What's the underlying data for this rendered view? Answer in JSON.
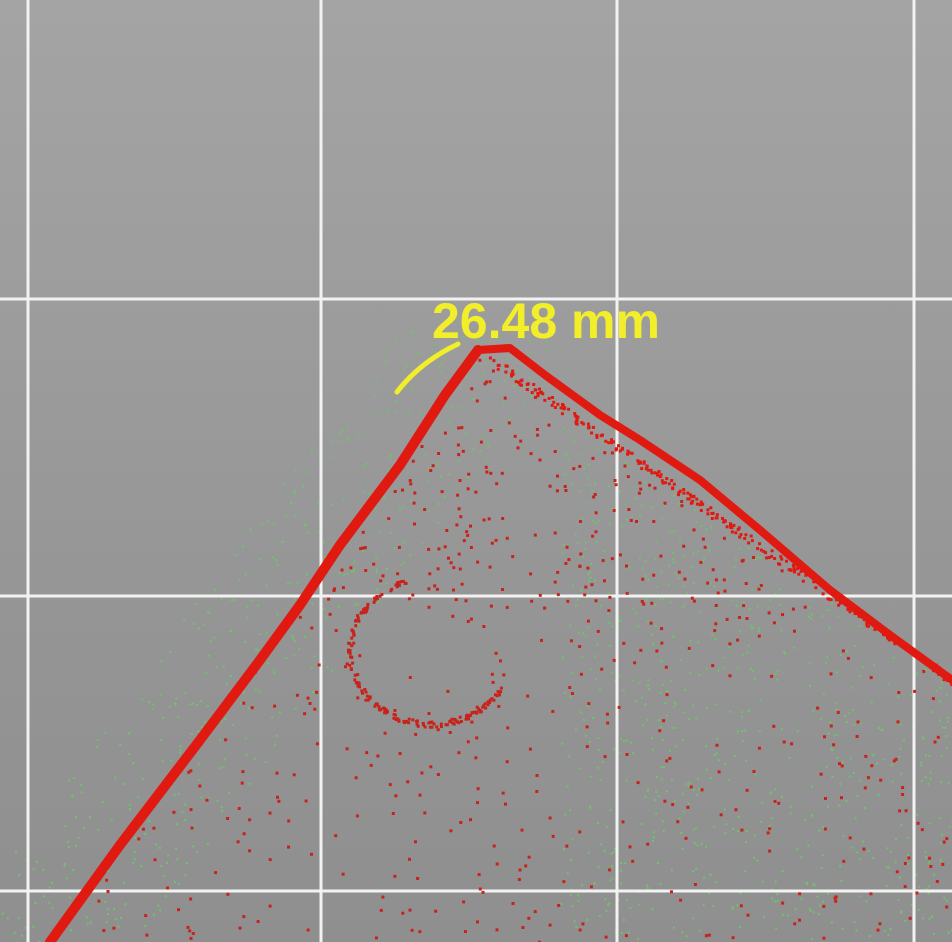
{
  "measurement": {
    "label": "26.48 mm",
    "label_color": "#f2ef2a"
  },
  "colors": {
    "background": "#9a9a9a",
    "grid": "#f2f2f2",
    "profile": "#e01a10",
    "scatter_red": "#c8231b",
    "scatter_green": "#6fc46a"
  },
  "icons": {
    "measure-arc": "arc-icon"
  }
}
